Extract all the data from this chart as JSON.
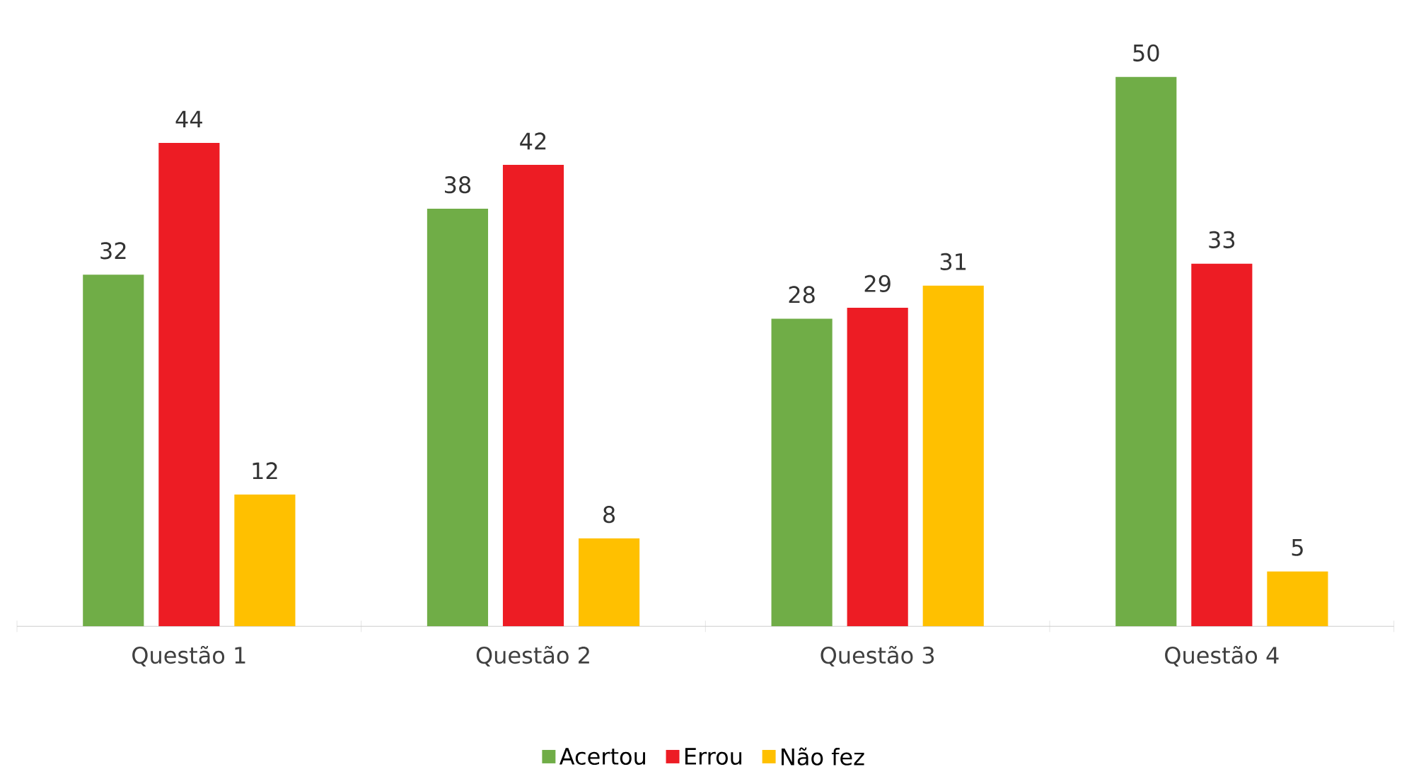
{
  "chart_data": {
    "type": "bar",
    "categories": [
      "Questão 1",
      "Questão 2",
      "Questão 3",
      "Questão 4"
    ],
    "series": [
      {
        "name": "Acertou",
        "color": "#70ad47",
        "values": [
          32,
          38,
          28,
          50
        ]
      },
      {
        "name": "Errou",
        "color": "#ed1c24",
        "values": [
          44,
          42,
          29,
          33
        ]
      },
      {
        "name": "Não fez",
        "color": "#ffc000",
        "values": [
          12,
          8,
          31,
          5
        ]
      }
    ],
    "data_labels": true,
    "legend": "bottom"
  }
}
